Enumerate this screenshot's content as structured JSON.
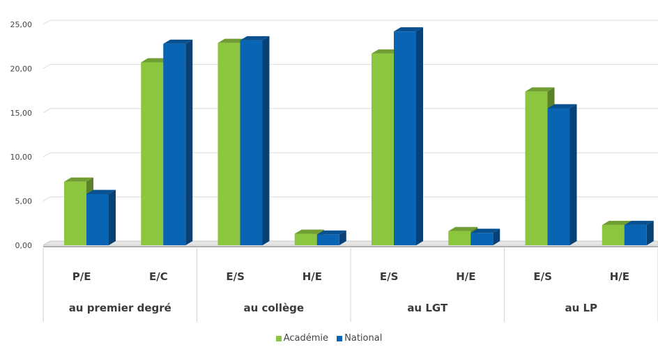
{
  "chart_data": {
    "type": "bar",
    "y_ticks": [
      "0,00",
      "5,00",
      "10,00",
      "15,00",
      "20,00",
      "25,00"
    ],
    "ylim": [
      0,
      25
    ],
    "grid": true,
    "legend_position": "bottom",
    "groups": [
      {
        "label": "au premier degré",
        "categories": [
          "P/E",
          "E/C"
        ]
      },
      {
        "label": "au collège",
        "categories": [
          "E/S",
          "H/E"
        ]
      },
      {
        "label": "au LGT",
        "categories": [
          "E/S",
          "H/E"
        ]
      },
      {
        "label": "au LP",
        "categories": [
          "E/S",
          "H/E"
        ]
      }
    ],
    "categories": [
      "P/E",
      "E/C",
      "E/S",
      "H/E",
      "E/S",
      "H/E",
      "E/S",
      "H/E"
    ],
    "series": [
      {
        "name": "Académie",
        "color": "#8cc63f",
        "values": [
          7.2,
          20.7,
          22.9,
          1.3,
          21.7,
          1.6,
          17.4,
          2.3
        ]
      },
      {
        "name": "National",
        "color": "#0a64b4",
        "values": [
          5.8,
          22.8,
          23.2,
          1.2,
          24.2,
          1.4,
          15.5,
          2.3
        ]
      }
    ]
  }
}
